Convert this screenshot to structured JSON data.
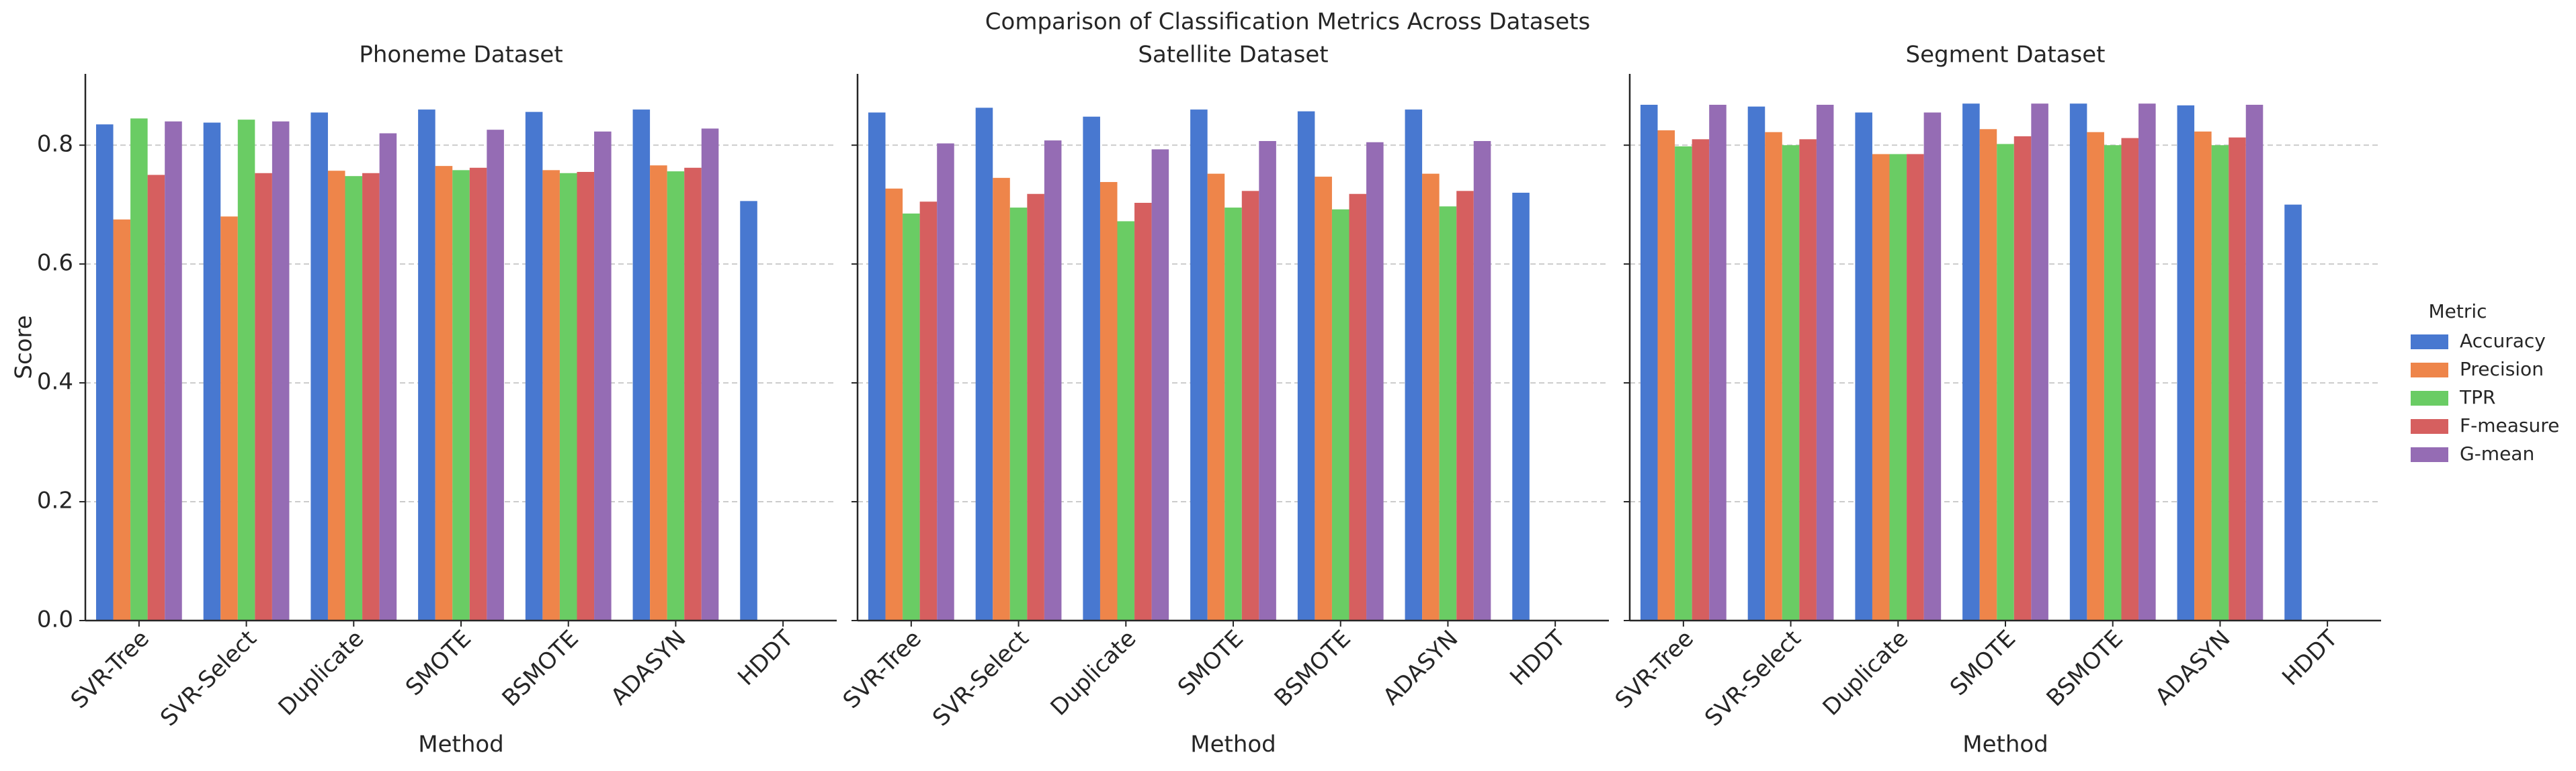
{
  "title": "Comparison of Classification Metrics Across Datasets",
  "legend": {
    "title": "Metric",
    "corner": "right"
  },
  "chart_data": [
    {
      "type": "bar",
      "title": "Phoneme Dataset",
      "x_label": "Method",
      "y_label": "Score",
      "categories": [
        "SVR-Tree",
        "SVR-Select",
        "Duplicate",
        "SMOTE",
        "BSMOTE",
        "ADASYN",
        "HDDT"
      ],
      "ylim": [
        0,
        0.92
      ],
      "yticks": [
        {
          "value": 0,
          "label": "0.0"
        },
        0.2,
        0.4,
        0.6,
        0.8
      ],
      "grid": true,
      "series": [
        {
          "name": "Accuracy",
          "color": "#4878d0",
          "values": [
            0.835,
            0.838,
            0.855,
            0.86,
            0.856,
            0.86,
            0.706
          ]
        },
        {
          "name": "Precision",
          "color": "#ee854a",
          "values": [
            0.675,
            0.68,
            0.757,
            0.765,
            0.758,
            0.766,
            null
          ]
        },
        {
          "name": "TPR",
          "color": "#6acc64",
          "values": [
            0.845,
            0.843,
            0.748,
            0.758,
            0.753,
            0.756,
            null
          ]
        },
        {
          "name": "F-measure",
          "color": "#d65f5f",
          "values": [
            0.75,
            0.753,
            0.753,
            0.762,
            0.755,
            0.762,
            null
          ]
        },
        {
          "name": "G-mean",
          "color": "#956cb4",
          "values": [
            0.84,
            0.84,
            0.82,
            0.826,
            0.823,
            0.828,
            null
          ]
        }
      ]
    },
    {
      "type": "bar",
      "title": "Satellite Dataset",
      "x_label": "Method",
      "categories": [
        "SVR-Tree",
        "SVR-Select",
        "Duplicate",
        "SMOTE",
        "BSMOTE",
        "ADASYN",
        "HDDT"
      ],
      "series": [
        {
          "name": "Accuracy",
          "color": "#4878d0",
          "values": [
            0.855,
            0.863,
            0.848,
            0.86,
            0.857,
            0.86,
            0.72
          ]
        },
        {
          "name": "Precision",
          "color": "#ee854a",
          "values": [
            0.727,
            0.745,
            0.738,
            0.752,
            0.747,
            0.752,
            null
          ]
        },
        {
          "name": "TPR",
          "color": "#6acc64",
          "values": [
            0.685,
            0.695,
            0.672,
            0.695,
            0.692,
            0.697,
            null
          ]
        },
        {
          "name": "F-measure",
          "color": "#d65f5f",
          "values": [
            0.705,
            0.718,
            0.703,
            0.723,
            0.718,
            0.723,
            null
          ]
        },
        {
          "name": "G-mean",
          "color": "#956cb4",
          "values": [
            0.803,
            0.808,
            0.793,
            0.807,
            0.805,
            0.807,
            null
          ]
        }
      ]
    },
    {
      "type": "bar",
      "title": "Segment Dataset",
      "x_label": "Method",
      "categories": [
        "SVR-Tree",
        "SVR-Select",
        "Duplicate",
        "SMOTE",
        "BSMOTE",
        "ADASYN",
        "HDDT"
      ],
      "series": [
        {
          "name": "Accuracy",
          "color": "#4878d0",
          "values": [
            0.868,
            0.865,
            0.855,
            0.87,
            0.87,
            0.867,
            0.7
          ]
        },
        {
          "name": "Precision",
          "color": "#ee854a",
          "values": [
            0.825,
            0.822,
            0.785,
            0.827,
            0.822,
            0.823,
            null
          ]
        },
        {
          "name": "TPR",
          "color": "#6acc64",
          "values": [
            0.798,
            0.8,
            0.785,
            0.802,
            0.8,
            0.8,
            null
          ]
        },
        {
          "name": "F-measure",
          "color": "#d65f5f",
          "values": [
            0.81,
            0.81,
            0.785,
            0.815,
            0.812,
            0.813,
            null
          ]
        },
        {
          "name": "G-mean",
          "color": "#956cb4",
          "values": [
            0.868,
            0.868,
            0.855,
            0.87,
            0.87,
            0.868,
            null
          ]
        }
      ]
    }
  ]
}
